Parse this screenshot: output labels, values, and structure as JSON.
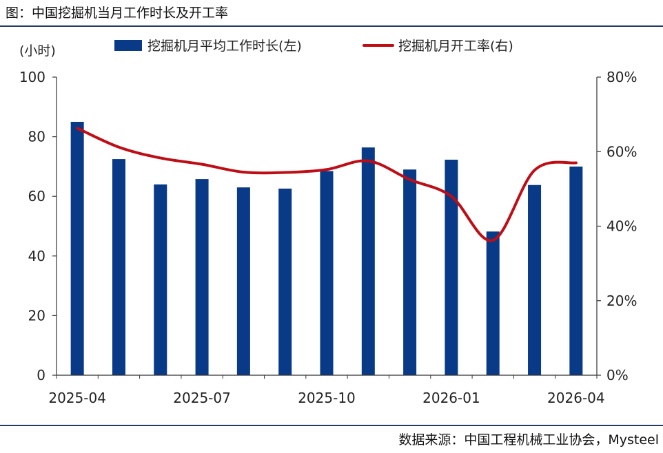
{
  "title": "图：中国挖掘机当月工作时长及开工率",
  "source": "数据来源：中国工程机械工业协会，Mysteel",
  "chart_data": {
    "type": "bar",
    "left_unit": "(小时)",
    "categories": [
      "2025-04",
      "2025-05",
      "2025-06",
      "2025-07",
      "2025-08",
      "2025-09",
      "2025-10",
      "2025-11",
      "2025-12",
      "2026-01",
      "2026-02",
      "2026-03",
      "2026-04"
    ],
    "x_tick_labels": [
      "2025-04",
      "2025-07",
      "2025-10",
      "2026-01",
      "2026-04"
    ],
    "y_left": {
      "min": 0,
      "max": 100,
      "ticks": [
        "0",
        "20",
        "40",
        "60",
        "80",
        "100"
      ]
    },
    "y_right": {
      "min": 0,
      "max": 80,
      "ticks": [
        "0%",
        "20%",
        "40%",
        "60%",
        "80%"
      ]
    },
    "series": [
      {
        "name": "挖掘机月平均工作时长(左)",
        "type": "bar",
        "axis": "left",
        "color": "#083a87",
        "values": [
          85.0,
          72.5,
          64.0,
          65.8,
          63.0,
          62.6,
          68.5,
          76.4,
          69.0,
          72.3,
          48.2,
          63.8,
          70.0
        ]
      },
      {
        "name": "挖掘机月开工率(右)",
        "type": "line",
        "axis": "right",
        "color": "#bf0d15",
        "values": [
          66.3,
          61.2,
          58.3,
          56.6,
          54.5,
          54.4,
          55.2,
          57.5,
          52.5,
          48.0,
          36.2,
          55.0,
          57.0
        ]
      }
    ],
    "legend_position": "top",
    "grid": false
  }
}
